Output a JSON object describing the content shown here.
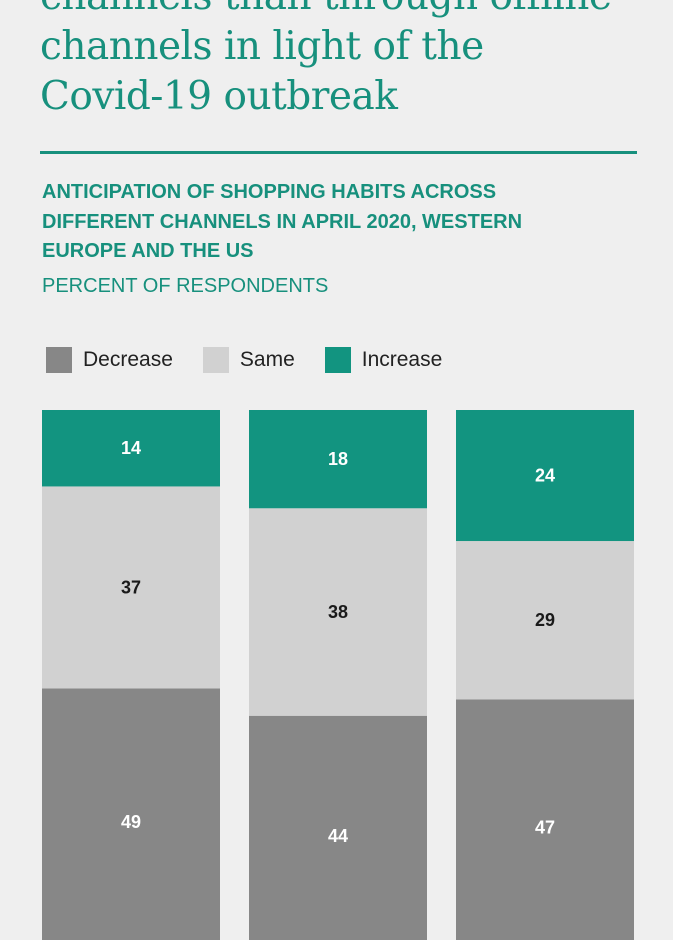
{
  "title_lines": [
    "channels than through offline",
    "channels in light of the",
    "Covid-19 outbreak"
  ],
  "subtitle_lines": [
    "ANTICIPATION OF SHOPPING HABITS ACROSS",
    "DIFFERENT CHANNELS IN APRIL 2020, WESTERN",
    "EUROPE AND THE US"
  ],
  "units": "PERCENT OF RESPONDENTS",
  "colors": {
    "accent": "#17907d",
    "decrease": "#878787",
    "same": "#d1d1d1",
    "increase": "#129480"
  },
  "legend": [
    {
      "label": "Decrease",
      "color": "#878787"
    },
    {
      "label": "Same",
      "color": "#d1d1d1"
    },
    {
      "label": "Increase",
      "color": "#129480"
    }
  ],
  "chart_data": {
    "type": "bar",
    "stacked": true,
    "orientation": "vertical",
    "categories": [
      "",
      "",
      ""
    ],
    "series": [
      {
        "name": "Decrease",
        "values": [
          49,
          44,
          47
        ],
        "color": "#878787"
      },
      {
        "name": "Same",
        "values": [
          37,
          38,
          29
        ],
        "color": "#d1d1d1"
      },
      {
        "name": "Increase",
        "values": [
          14,
          18,
          24
        ],
        "color": "#129480"
      }
    ],
    "ylim": [
      0,
      100
    ],
    "grid": false,
    "legend_position": "top-left",
    "data_labels": true
  }
}
